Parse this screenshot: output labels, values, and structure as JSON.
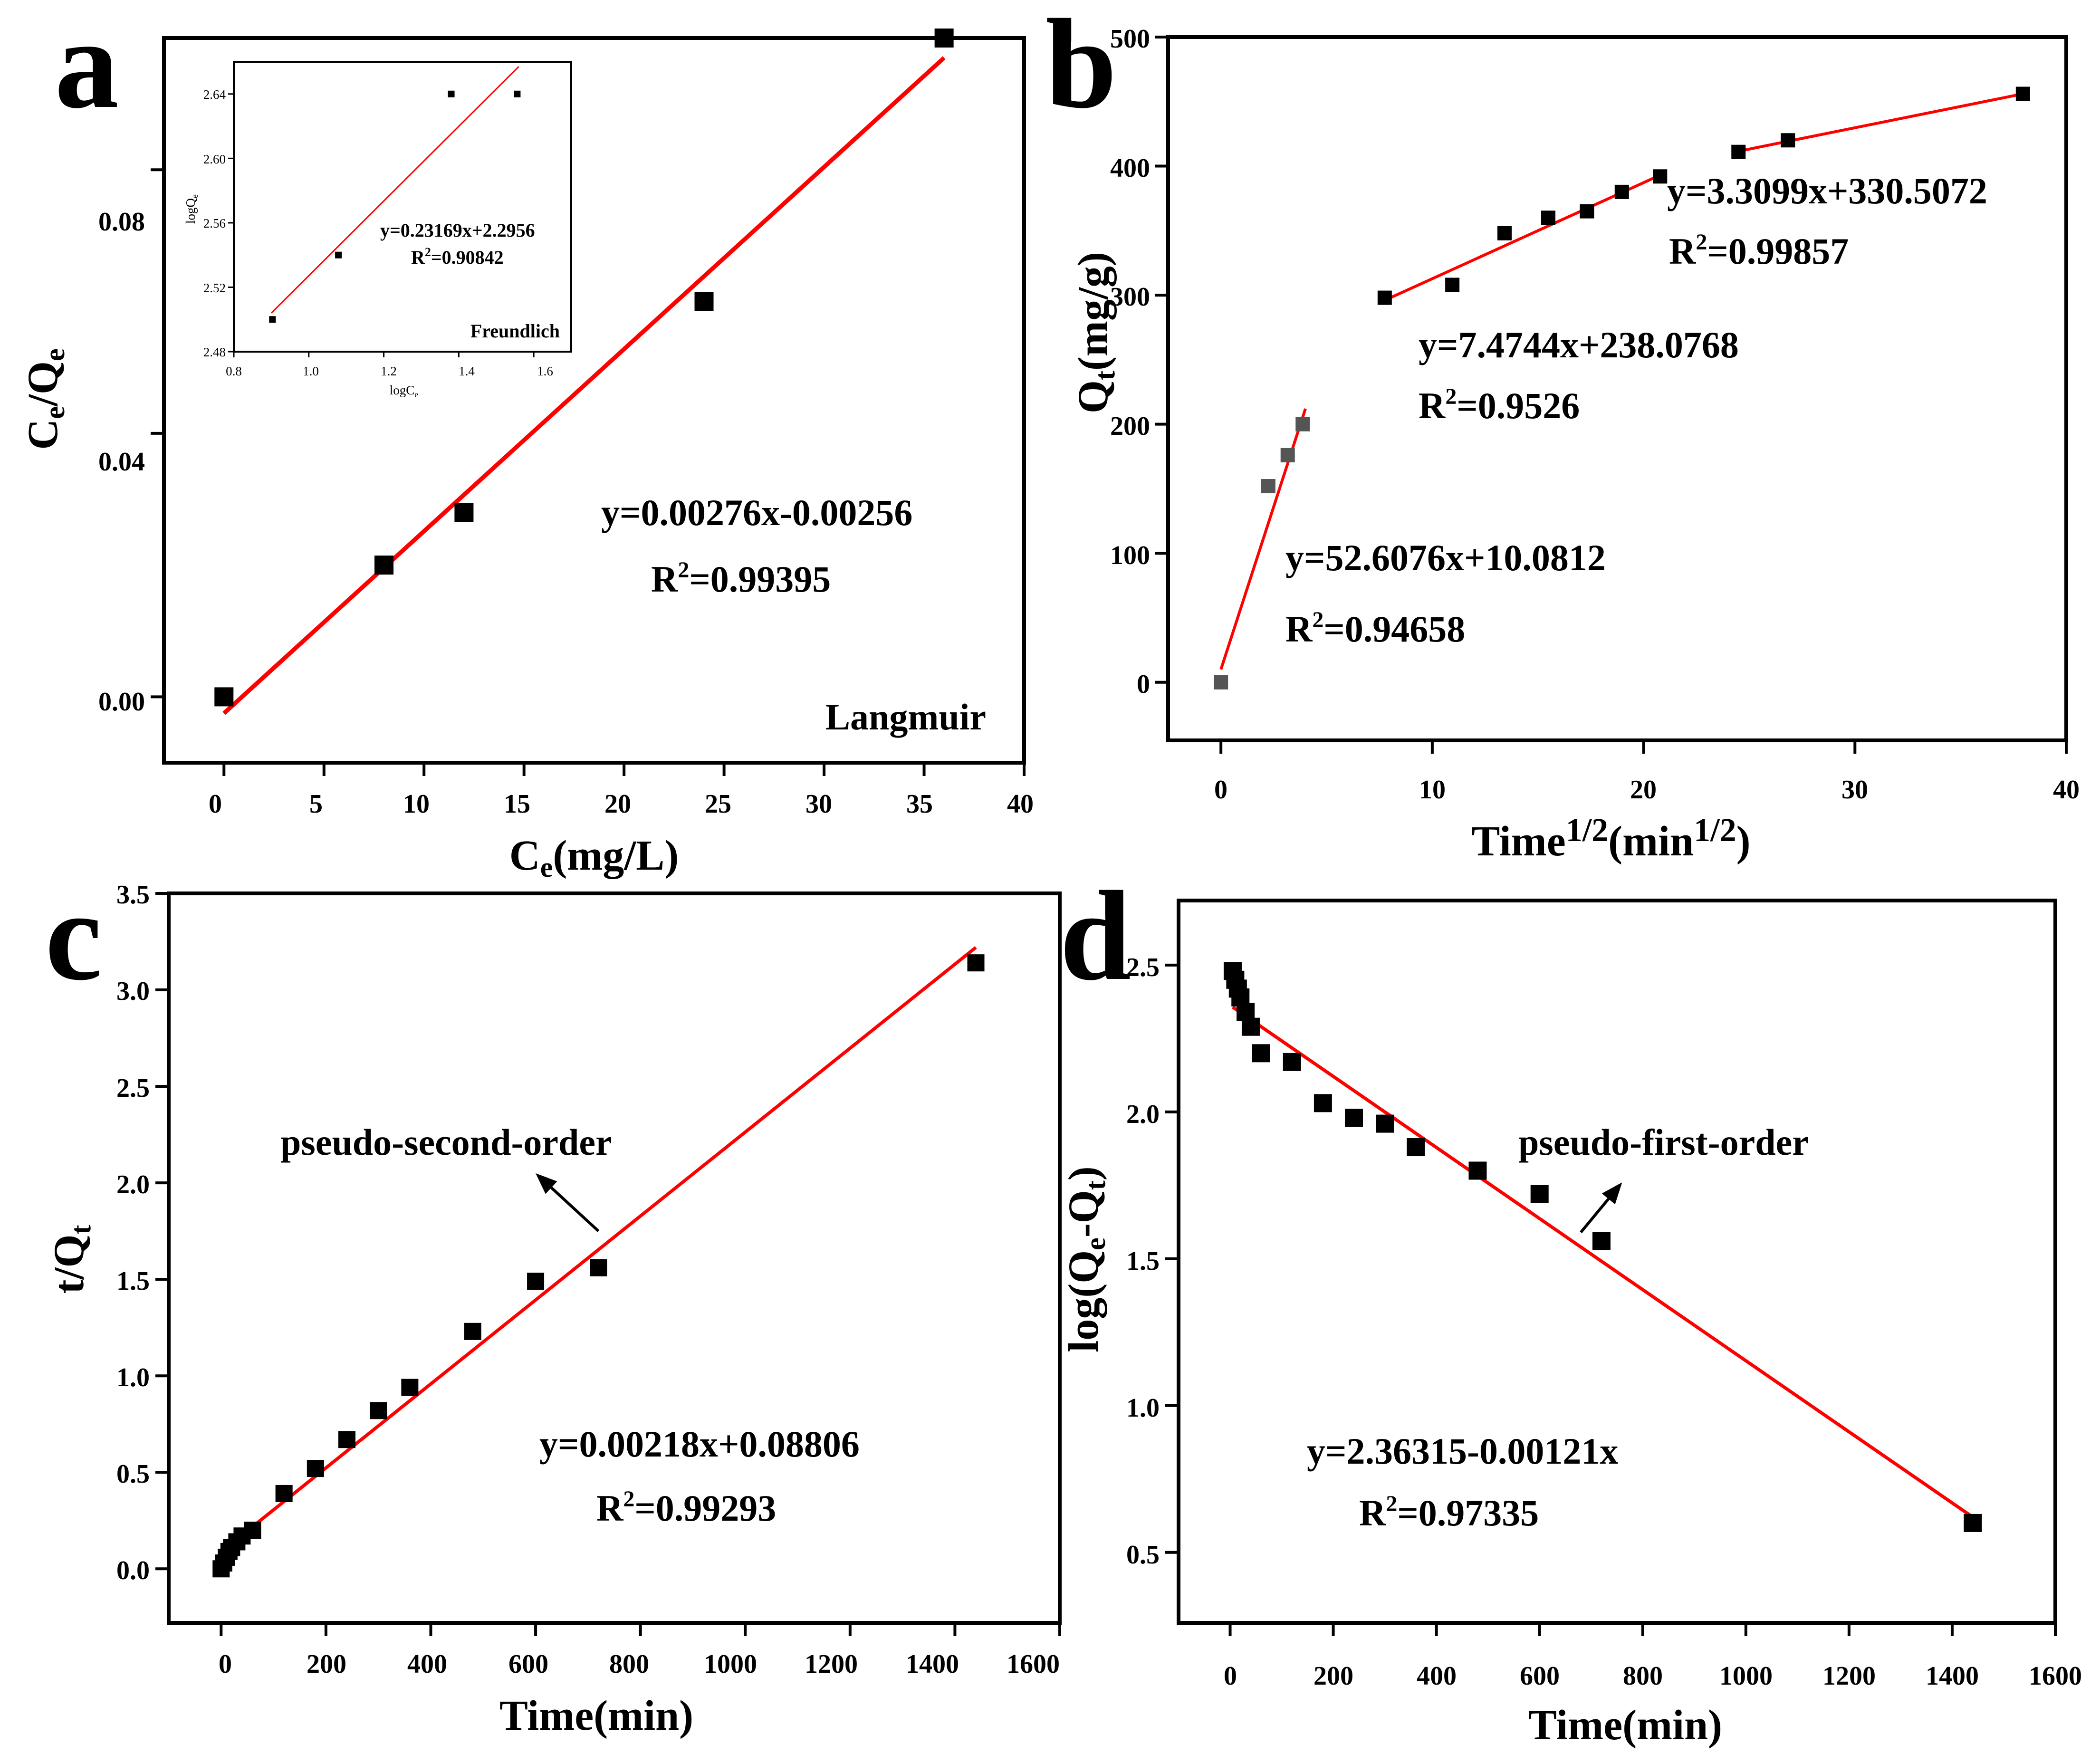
{
  "chart_data": [
    {
      "panel": "a",
      "type": "scatter",
      "xlabel": "Ce(mg/L)",
      "ylabel": "Ce/Qe",
      "xlim": [
        -3,
        40
      ],
      "ylim": [
        -0.01,
        0.1
      ],
      "xticks": [
        "0",
        "5",
        "10",
        "15",
        "20",
        "25",
        "30",
        "35",
        "40"
      ],
      "yticks": [
        "0.00",
        "0.04",
        "0.08"
      ],
      "points": [
        [
          0,
          0.0
        ],
        [
          8,
          0.02
        ],
        [
          12,
          0.028
        ],
        [
          24,
          0.06
        ],
        [
          36,
          0.1
        ]
      ],
      "fit_lines": [
        [
          [
            0,
            -0.0025
          ],
          [
            36,
            0.097
          ]
        ]
      ],
      "annotations": [
        "y=0.00276x-0.00256",
        "R2=0.99395",
        "Langmuir"
      ],
      "inset": {
        "title": "Freundlich",
        "xlabel": "logCe",
        "ylabel": "logQe",
        "xlim": [
          0.8,
          1.7
        ],
        "ylim": [
          2.48,
          2.66
        ],
        "xticks": [
          "0.8",
          "1.0",
          "1.2",
          "1.4",
          "1.6"
        ],
        "yticks": [
          "2.48",
          "2.52",
          "2.56",
          "2.60",
          "2.64"
        ],
        "points": [
          [
            0.903,
            2.5
          ],
          [
            1.079,
            2.54
          ],
          [
            1.38,
            2.64
          ],
          [
            1.556,
            2.64
          ]
        ],
        "fit_line": [
          [
            0.9,
            2.504
          ],
          [
            1.56,
            2.657
          ]
        ],
        "annotations": [
          "y=0.23169x+2.2956",
          "R2=0.90842"
        ]
      }
    },
    {
      "panel": "b",
      "type": "scatter",
      "xlabel": "Time1/2(min1/2)",
      "ylabel": "Qt(mg/g)",
      "xlim": [
        -2.5,
        40
      ],
      "ylim": [
        -45,
        500
      ],
      "xticks": [
        "0",
        "10",
        "20",
        "30",
        "40"
      ],
      "yticks": [
        "0",
        "100",
        "200",
        "300",
        "400",
        "500"
      ],
      "points": [
        [
          0,
          0
        ],
        [
          2.24,
          152
        ],
        [
          3.16,
          176
        ],
        [
          3.87,
          200
        ],
        [
          7.75,
          298
        ],
        [
          10.95,
          308
        ],
        [
          13.42,
          348
        ],
        [
          15.49,
          360
        ],
        [
          17.32,
          365
        ],
        [
          18.97,
          380
        ],
        [
          20.78,
          392
        ],
        [
          24.49,
          411
        ],
        [
          26.83,
          420
        ],
        [
          37.95,
          456
        ]
      ],
      "fit_lines": [
        [
          [
            0,
            10
          ],
          [
            4,
            212
          ]
        ],
        [
          [
            7.75,
            296
          ],
          [
            20.78,
            393
          ]
        ],
        [
          [
            24.49,
            411.5
          ],
          [
            37.95,
            456
          ]
        ]
      ],
      "annotations": [
        "y=52.6076x+10.0812",
        "R2=0.94658",
        "y=7.4744x+238.0768",
        "R2=0.9526",
        "y=3.3099x+330.5072",
        "R2=0.99857"
      ]
    },
    {
      "panel": "c",
      "type": "scatter",
      "xlabel": "Time(min)",
      "ylabel": "t/Qt",
      "xlim": [
        -100,
        1600
      ],
      "ylim": [
        -0.28,
        3.5
      ],
      "xticks": [
        "0",
        "200",
        "400",
        "600",
        "800",
        "1000",
        "1200",
        "1400",
        "1600"
      ],
      "yticks": [
        "0.0",
        "0.5",
        "1.0",
        "1.5",
        "2.0",
        "2.5",
        "3.0",
        "3.5"
      ],
      "points": [
        [
          0,
          0.0
        ],
        [
          5,
          0.03
        ],
        [
          10,
          0.06
        ],
        [
          15,
          0.09
        ],
        [
          20,
          0.11
        ],
        [
          30,
          0.14
        ],
        [
          40,
          0.17
        ],
        [
          60,
          0.2
        ],
        [
          120,
          0.39
        ],
        [
          180,
          0.52
        ],
        [
          240,
          0.67
        ],
        [
          300,
          0.82
        ],
        [
          360,
          0.94
        ],
        [
          480,
          1.23
        ],
        [
          600,
          1.49
        ],
        [
          720,
          1.56
        ],
        [
          1440,
          3.14
        ]
      ],
      "fit_lines": [
        [
          [
            0,
            0.088
          ],
          [
            1440,
            3.22
          ]
        ]
      ],
      "arrow": [
        [
          720,
          1.75
        ],
        [
          600,
          2.05
        ]
      ],
      "annotations": [
        "pseudo-second-order",
        "y=0.00218x+0.08806",
        "R2=0.99293"
      ]
    },
    {
      "panel": "d",
      "type": "scatter",
      "xlabel": "Time(min)",
      "ylabel": "log(Qe-Qt)",
      "xlim": [
        -100,
        1600
      ],
      "ylim": [
        0.26,
        2.72
      ],
      "xticks": [
        "0",
        "200",
        "400",
        "600",
        "800",
        "1000",
        "1200",
        "1400",
        "1600"
      ],
      "yticks": [
        "0.5",
        "1.0",
        "1.5",
        "2.0",
        "2.5"
      ],
      "points": [
        [
          5,
          2.48
        ],
        [
          10,
          2.45
        ],
        [
          15,
          2.42
        ],
        [
          20,
          2.39
        ],
        [
          30,
          2.34
        ],
        [
          40,
          2.29
        ],
        [
          60,
          2.2
        ],
        [
          120,
          2.17
        ],
        [
          180,
          2.03
        ],
        [
          240,
          1.98
        ],
        [
          300,
          1.96
        ],
        [
          360,
          1.88
        ],
        [
          480,
          1.8
        ],
        [
          600,
          1.72
        ],
        [
          720,
          1.56
        ],
        [
          1440,
          0.6
        ]
      ],
      "fit_lines": [
        [
          [
            5,
            2.357
          ],
          [
            1440,
            0.62
          ]
        ]
      ],
      "arrow": [
        [
          680,
          1.59
        ],
        [
          760,
          1.76
        ]
      ],
      "annotations": [
        "pseudo-first-order",
        "y=2.36315-0.00121x",
        "R2=0.97335"
      ]
    }
  ],
  "panel_letters": [
    "a",
    "b",
    "c",
    "d"
  ],
  "colors": {
    "fit": "#ff0000",
    "marker": "#000000",
    "marker_b_early": "#555555",
    "frame": "#000000"
  }
}
